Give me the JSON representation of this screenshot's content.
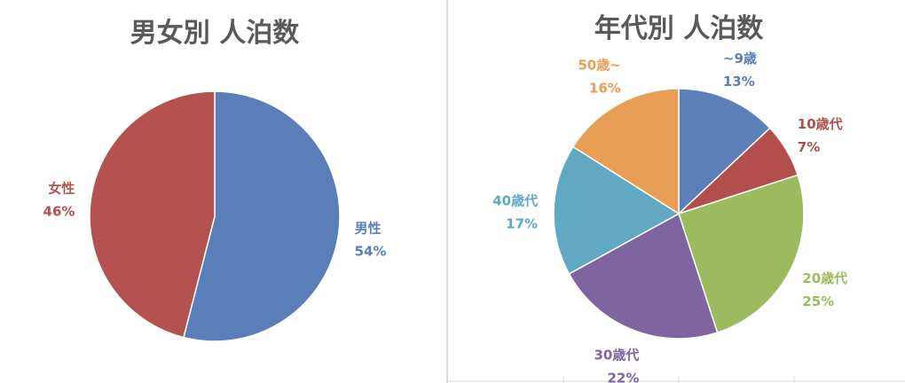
{
  "chart_data": [
    {
      "type": "pie",
      "title": "男女別 人泊数",
      "categories": [
        "男性",
        "女性"
      ],
      "values": [
        54,
        46
      ],
      "value_labels": [
        "54%",
        "46%"
      ],
      "colors": [
        "#5a7fb8",
        "#b3524e"
      ],
      "start_angle_deg": 0,
      "direction": "clockwise",
      "legend": "none",
      "data_labels": "outside"
    },
    {
      "type": "pie",
      "title": "年代別 人泊数",
      "categories": [
        "~9歳",
        "10歳代",
        "20歳代",
        "30歳代",
        "40歳代",
        "50歳~"
      ],
      "values": [
        13,
        7,
        25,
        22,
        17,
        16
      ],
      "value_labels": [
        "13%",
        "7%",
        "25%",
        "22%",
        "17%",
        "16%"
      ],
      "colors": [
        "#5b7fb6",
        "#b24f4c",
        "#9cbb5e",
        "#7e65a0",
        "#61a8c2",
        "#e89e55"
      ],
      "start_angle_deg": 0,
      "direction": "clockwise",
      "legend": "none",
      "data_labels": "outside"
    }
  ]
}
